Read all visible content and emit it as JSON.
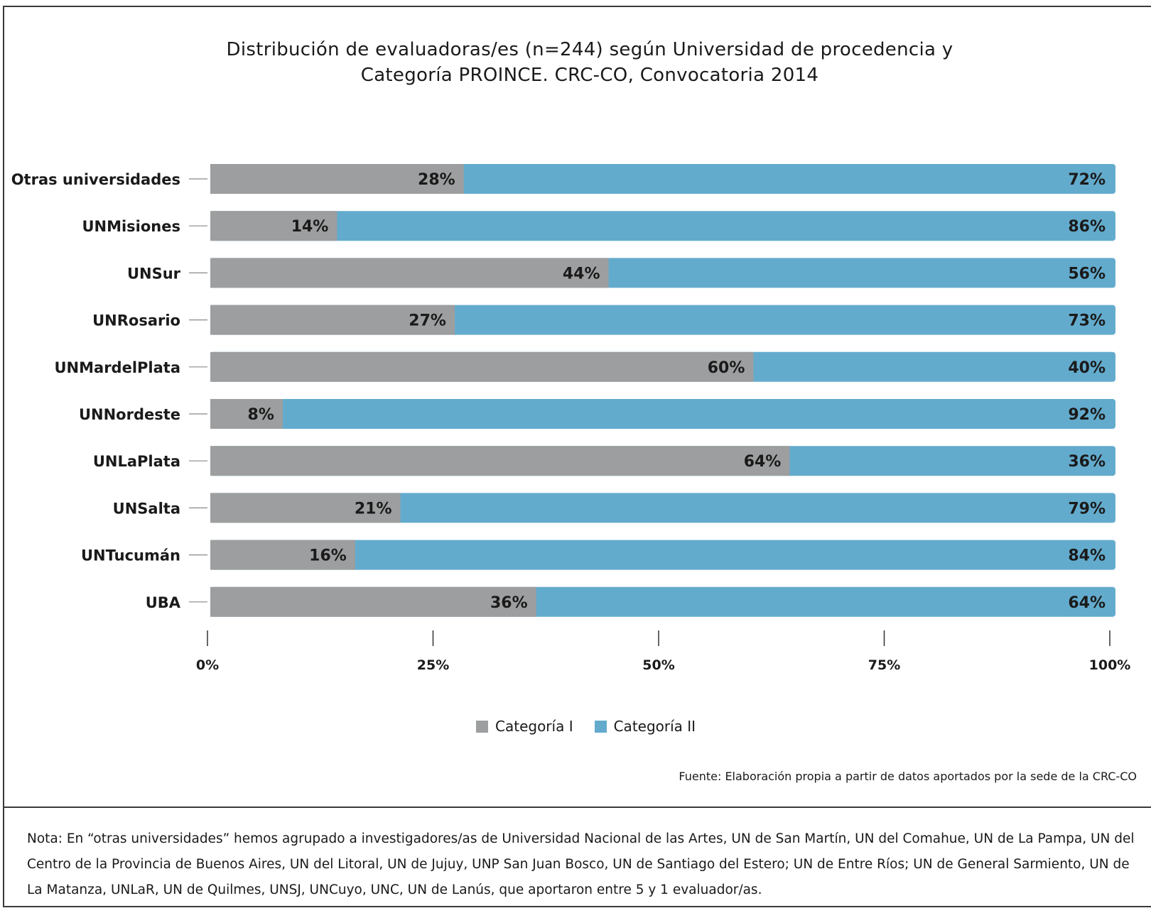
{
  "title_line1": "Distribución de evaluadoras/es (n=244) según Universidad de procedencia y",
  "title_line2": "Categoría PROINCE. CRC-CO,  Convocatoria 2014",
  "source": "Fuente: Elaboración propia a partir de datos aportados por la sede de la CRC-CO",
  "note": "Nota: En “otras universidades” hemos agrupado a investigadores/as de Universidad Nacional de las Artes, UN de San Martín, UN del Comahue, UN de La Pampa, UN del Centro de la Provincia de Buenos Aires, UN del Litoral, UN de Jujuy, UNP San Juan Bosco, UN de Santiago del Estero; UN de Entre Ríos; UN de General Sarmiento, UN de La Matanza, UNLaR, UN de Quilmes, UNSJ, UNCuyo, UNC, UN de Lanús, que aportaron entre 5 y 1 evaluador/as.",
  "colors": {
    "cat1": "#9d9e9f",
    "cat2": "#63abcd",
    "text": "#1a1a1a",
    "axis": "#555555"
  },
  "chart_data": {
    "type": "bar",
    "orientation": "horizontal",
    "stacked": true,
    "title": "Distribución de evaluadoras/es (n=244) según Universidad de procedencia y Categoría PROINCE. CRC-CO,  Convocatoria 2014",
    "categories": [
      "Otras universidades",
      "UNMisiones",
      "UNSur",
      "UNRosario",
      "UNMardelPlata",
      "UNNordeste",
      "UNLaPlata",
      "UNSalta",
      "UNTucumán",
      "UBA"
    ],
    "series": [
      {
        "name": "Categoría I",
        "values": [
          28,
          14,
          44,
          27,
          60,
          8,
          64,
          21,
          16,
          36
        ],
        "labels": [
          "28%",
          "14%",
          "44%",
          "27%",
          "60%",
          "8%",
          "64%",
          "21%",
          "16%",
          "36%"
        ]
      },
      {
        "name": "Categoría II",
        "values": [
          72,
          86,
          56,
          73,
          40,
          92,
          36,
          79,
          84,
          64
        ],
        "labels": [
          "72%",
          "86%",
          "56%",
          "73%",
          "40%",
          "92%",
          "36%",
          "79%",
          "84%",
          "64%"
        ]
      }
    ],
    "xlim": [
      0,
      100
    ],
    "xticks": [
      0,
      25,
      50,
      75,
      100
    ],
    "xtick_labels": [
      "0%",
      "25%",
      "50%",
      "75%",
      "100%"
    ],
    "xlabel": "",
    "ylabel": "",
    "grid": false,
    "legend": "bottom-center"
  }
}
